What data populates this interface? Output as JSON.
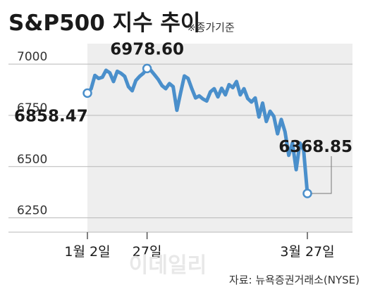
{
  "header": {
    "title": "S&P500 지수 추이",
    "note": "※종가기준"
  },
  "source": "자료: 뉴욕증권거래소(NYSE)",
  "watermark": "이데일리",
  "colors": {
    "line": "#4a8fcb",
    "marker_fill": "#ffffff",
    "grid": "#b8b8b8",
    "plot_bg": "#eeeeee",
    "text": "#1a1a1a",
    "muted_text": "#333333"
  },
  "chart_data": {
    "type": "line",
    "title": "S&P500 지수 추이",
    "y_ticks": [
      6250,
      6500,
      6750,
      7000
    ],
    "y_tick_labels": [
      "6250",
      "6500",
      "6750",
      "7000"
    ],
    "ylim": [
      6180,
      7100
    ],
    "x_ticks": [
      {
        "index": 0,
        "label": "1월 2일"
      },
      {
        "index": 16,
        "label": "27일"
      },
      {
        "index": 59,
        "label": "3월 27일"
      }
    ],
    "series": [
      {
        "values": [
          6858.47,
          6880,
          6945,
          6930,
          6936,
          6970,
          6958,
          6915,
          6965,
          6955,
          6940,
          6890,
          6870,
          6920,
          6940,
          6955,
          6978.6,
          6970,
          6948,
          6925,
          6895,
          6880,
          6905,
          6890,
          6775,
          6860,
          6942,
          6930,
          6880,
          6835,
          6845,
          6830,
          6820,
          6865,
          6880,
          6840,
          6882,
          6850,
          6900,
          6885,
          6915,
          6850,
          6880,
          6832,
          6815,
          6835,
          6742,
          6810,
          6720,
          6770,
          6745,
          6660,
          6730,
          6670,
          6555,
          6615,
          6485,
          6615,
          6580,
          6368.85
        ],
        "annotations": [
          {
            "index": 0,
            "label": "6858.47"
          },
          {
            "index": 16,
            "label": "6978.60"
          },
          {
            "index": 59,
            "label": "6368.85"
          }
        ]
      }
    ]
  }
}
